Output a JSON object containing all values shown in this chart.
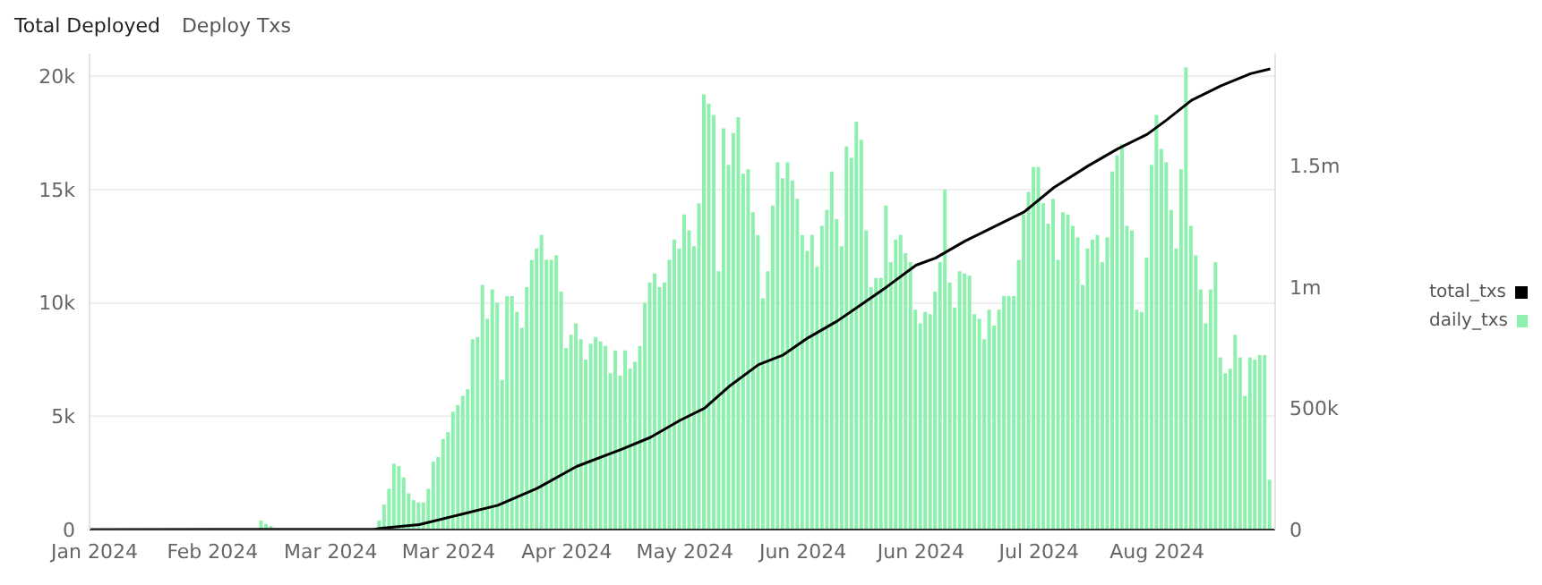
{
  "chart_data": {
    "type": "bar",
    "title": "Total Deployed",
    "subtitle": "Deploy Txs",
    "xlim": [
      "2024-01-12",
      "2024-09-09"
    ],
    "xticks": [
      {
        "value": "2024-01-13",
        "label": "Jan 2024"
      },
      {
        "value": "2024-02-06",
        "label": "Feb 2024"
      },
      {
        "value": "2024-03-01",
        "label": "Mar 2024"
      },
      {
        "value": "2024-03-25",
        "label": "Mar 2024"
      },
      {
        "value": "2024-04-18",
        "label": "Apr 2024"
      },
      {
        "value": "2024-05-12",
        "label": "May 2024"
      },
      {
        "value": "2024-06-05",
        "label": "Jun 2024"
      },
      {
        "value": "2024-06-29",
        "label": "Jun 2024"
      },
      {
        "value": "2024-07-23",
        "label": "Jul 2024"
      },
      {
        "value": "2024-08-16",
        "label": "Aug 2024"
      }
    ],
    "ylim": [
      0,
      21000
    ],
    "yticks": [
      0,
      {
        "value": 5000,
        "label": "5k"
      },
      {
        "value": 10000,
        "label": "10k"
      },
      {
        "value": 15000,
        "label": "15k"
      },
      {
        "value": 20000,
        "label": "20k"
      }
    ],
    "y2lim": [
      0,
      1962500
    ],
    "y2ticks": [
      0,
      {
        "value": 500000,
        "label": "500k"
      },
      {
        "value": 1000000,
        "label": "1m"
      },
      {
        "value": 1500000,
        "label": "1.5m"
      }
    ],
    "grid": "y",
    "legend": "right",
    "series": [
      {
        "name": "total_txs",
        "type": "line",
        "axis": "y2",
        "color": "#000000",
        "marker": "none",
        "x": [
          "2024-01-12",
          "2024-03-10",
          "2024-03-11",
          "2024-03-19",
          "2024-03-27",
          "2024-04-04",
          "2024-04-12",
          "2024-04-20",
          "2024-04-29",
          "2024-05-05",
          "2024-05-11",
          "2024-05-16",
          "2024-05-21",
          "2024-05-27",
          "2024-06-01",
          "2024-06-06",
          "2024-06-12",
          "2024-06-17",
          "2024-06-22",
          "2024-06-28",
          "2024-07-02",
          "2024-07-08",
          "2024-07-14",
          "2024-07-20",
          "2024-07-26",
          "2024-08-02",
          "2024-08-08",
          "2024-08-14",
          "2024-08-18",
          "2024-08-23",
          "2024-08-29",
          "2024-09-04",
          "2024-09-08"
        ],
        "values": [
          0,
          1000,
          5000,
          20000,
          60000,
          100000,
          170000,
          260000,
          330000,
          380000,
          450000,
          500000,
          590000,
          680000,
          720000,
          790000,
          860000,
          930000,
          1000000,
          1090000,
          1120000,
          1190000,
          1250000,
          1310000,
          1410000,
          1500000,
          1570000,
          1630000,
          1690000,
          1770000,
          1830000,
          1880000,
          1900000
        ]
      },
      {
        "name": "daily_txs",
        "color": "#8ef0ae",
        "x": [
          "2024-02-16",
          "2024-02-17",
          "2024-02-18",
          "2024-02-19",
          "2024-02-20",
          "2024-03-11",
          "2024-03-12",
          "2024-03-13",
          "2024-03-14",
          "2024-03-15",
          "2024-03-16",
          "2024-03-17",
          "2024-03-18",
          "2024-03-19",
          "2024-03-20",
          "2024-03-21",
          "2024-03-22",
          "2024-03-23",
          "2024-03-24",
          "2024-03-25",
          "2024-03-26",
          "2024-03-27",
          "2024-03-28",
          "2024-03-29",
          "2024-03-30",
          "2024-03-31",
          "2024-04-01",
          "2024-04-02",
          "2024-04-03",
          "2024-04-04",
          "2024-04-05",
          "2024-04-06",
          "2024-04-07",
          "2024-04-08",
          "2024-04-09",
          "2024-04-10",
          "2024-04-11",
          "2024-04-12",
          "2024-04-13",
          "2024-04-14",
          "2024-04-15",
          "2024-04-16",
          "2024-04-17",
          "2024-04-18",
          "2024-04-19",
          "2024-04-20",
          "2024-04-21",
          "2024-04-22",
          "2024-04-23",
          "2024-04-24",
          "2024-04-25",
          "2024-04-26",
          "2024-04-27",
          "2024-04-28",
          "2024-04-29",
          "2024-04-30",
          "2024-05-01",
          "2024-05-02",
          "2024-05-03",
          "2024-05-04",
          "2024-05-05",
          "2024-05-06",
          "2024-05-07",
          "2024-05-08",
          "2024-05-09",
          "2024-05-10",
          "2024-05-11",
          "2024-05-12",
          "2024-05-13",
          "2024-05-14",
          "2024-05-15",
          "2024-05-16",
          "2024-05-17",
          "2024-05-18",
          "2024-05-19",
          "2024-05-20",
          "2024-05-21",
          "2024-05-22",
          "2024-05-23",
          "2024-05-24",
          "2024-05-25",
          "2024-05-26",
          "2024-05-27",
          "2024-05-28",
          "2024-05-29",
          "2024-05-30",
          "2024-05-31",
          "2024-06-01",
          "2024-06-02",
          "2024-06-03",
          "2024-06-04",
          "2024-06-05",
          "2024-06-06",
          "2024-06-07",
          "2024-06-08",
          "2024-06-09",
          "2024-06-10",
          "2024-06-11",
          "2024-06-12",
          "2024-06-13",
          "2024-06-14",
          "2024-06-15",
          "2024-06-16",
          "2024-06-17",
          "2024-06-18",
          "2024-06-19",
          "2024-06-20",
          "2024-06-21",
          "2024-06-22",
          "2024-06-23",
          "2024-06-24",
          "2024-06-25",
          "2024-06-26",
          "2024-06-27",
          "2024-06-28",
          "2024-06-29",
          "2024-06-30",
          "2024-07-01",
          "2024-07-02",
          "2024-07-03",
          "2024-07-04",
          "2024-07-05",
          "2024-07-06",
          "2024-07-07",
          "2024-07-08",
          "2024-07-09",
          "2024-07-10",
          "2024-07-11",
          "2024-07-12",
          "2024-07-13",
          "2024-07-14",
          "2024-07-15",
          "2024-07-16",
          "2024-07-17",
          "2024-07-18",
          "2024-07-19",
          "2024-07-20",
          "2024-07-21",
          "2024-07-22",
          "2024-07-23",
          "2024-07-24",
          "2024-07-25",
          "2024-07-26",
          "2024-07-27",
          "2024-07-28",
          "2024-07-29",
          "2024-07-30",
          "2024-07-31",
          "2024-08-01",
          "2024-08-02",
          "2024-08-03",
          "2024-08-04",
          "2024-08-05",
          "2024-08-06",
          "2024-08-07",
          "2024-08-08",
          "2024-08-09",
          "2024-08-10",
          "2024-08-11",
          "2024-08-12",
          "2024-08-13",
          "2024-08-14",
          "2024-08-15",
          "2024-08-16",
          "2024-08-17",
          "2024-08-18",
          "2024-08-19",
          "2024-08-20",
          "2024-08-21",
          "2024-08-22",
          "2024-08-23",
          "2024-08-24",
          "2024-08-25",
          "2024-08-26",
          "2024-08-27",
          "2024-08-28",
          "2024-08-29",
          "2024-08-30",
          "2024-08-31",
          "2024-09-01",
          "2024-09-02",
          "2024-09-03",
          "2024-09-04",
          "2024-09-05",
          "2024-09-06",
          "2024-09-07",
          "2024-09-08"
        ],
        "values": [
          400,
          250,
          150,
          null,
          null,
          400,
          1100,
          1800,
          2900,
          2800,
          2300,
          1600,
          1300,
          1200,
          1200,
          1800,
          3000,
          3200,
          4000,
          4300,
          5200,
          5500,
          5900,
          6200,
          8400,
          8500,
          10800,
          9300,
          10600,
          10000,
          6600,
          10300,
          10300,
          9600,
          8900,
          10700,
          11900,
          12400,
          13000,
          11900,
          11900,
          12100,
          10500,
          8000,
          8600,
          9100,
          8400,
          7500,
          8200,
          8500,
          8300,
          8100,
          6900,
          7900,
          6800,
          7900,
          7100,
          7400,
          8100,
          10000,
          10900,
          11300,
          10700,
          10900,
          11900,
          12800,
          12400,
          13900,
          13200,
          12500,
          14400,
          19200,
          18800,
          18300,
          11400,
          17700,
          16100,
          17500,
          18200,
          15700,
          15900,
          14000,
          13000,
          10200,
          11400,
          14300,
          16200,
          15500,
          16200,
          15400,
          14600,
          13000,
          12300,
          13000,
          11600,
          13400,
          14100,
          15800,
          13700,
          12500,
          16900,
          16400,
          18000,
          17200,
          13200,
          10700,
          11100,
          11100,
          14300,
          11800,
          12800,
          13000,
          12200,
          11800,
          9700,
          9100,
          9600,
          9500,
          10500,
          11800,
          15000,
          10900,
          9800,
          11400,
          11300,
          11200,
          9500,
          9300,
          8400,
          9700,
          9000,
          9700,
          10300,
          10300,
          10300,
          11900,
          13900,
          14900,
          16000,
          16000,
          14400,
          13500,
          14600,
          11900,
          14000,
          13900,
          13400,
          12900,
          10800,
          12400,
          12800,
          13000,
          11800,
          12900,
          15800,
          16500,
          17000,
          13400,
          13200,
          9700,
          9600,
          12000,
          16100,
          18300,
          16800,
          16200,
          14100,
          12400,
          15900,
          20400,
          13400,
          12100,
          10600,
          9100,
          10600,
          11800,
          7600,
          6900,
          7100,
          8600,
          7600,
          5900,
          7600,
          7500,
          7700,
          7700,
          2200
        ]
      }
    ]
  }
}
